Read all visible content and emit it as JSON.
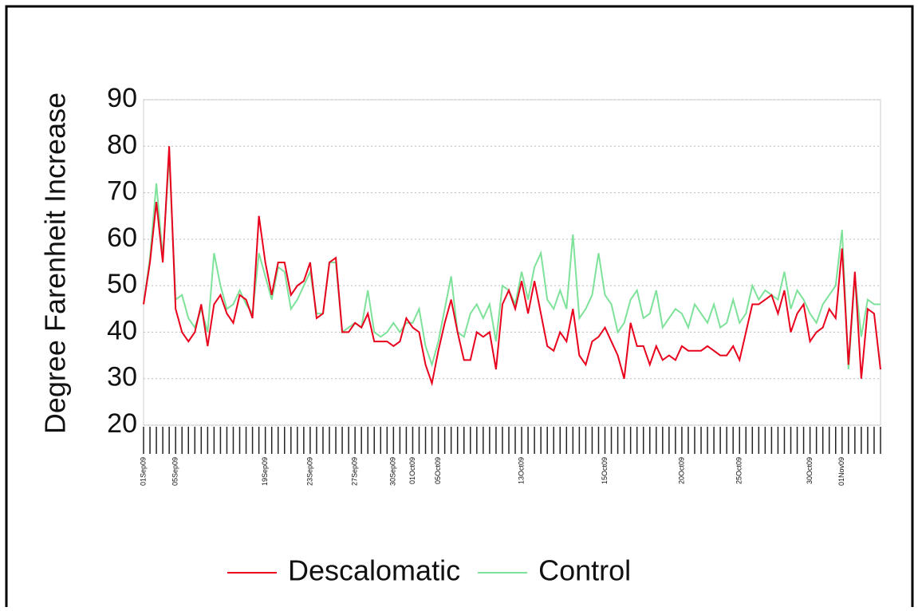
{
  "chart_data": {
    "type": "line",
    "y_label": "Degree Farenheit Increase",
    "categories": [
      "01Sep09",
      null,
      null,
      null,
      null,
      "05Sep09",
      null,
      null,
      null,
      null,
      null,
      null,
      null,
      null,
      null,
      null,
      null,
      null,
      null,
      "19Sep09",
      null,
      null,
      null,
      null,
      null,
      null,
      "23Sep09",
      null,
      null,
      null,
      null,
      null,
      null,
      "27Sep09",
      null,
      null,
      null,
      null,
      null,
      "30Sep09",
      null,
      null,
      "01Oct09",
      null,
      null,
      null,
      "05Oct09",
      null,
      null,
      null,
      null,
      null,
      null,
      null,
      null,
      null,
      null,
      null,
      null,
      "13Oct09",
      null,
      null,
      null,
      null,
      null,
      null,
      null,
      null,
      null,
      null,
      null,
      null,
      "15Oct09",
      null,
      null,
      null,
      null,
      null,
      null,
      null,
      null,
      null,
      null,
      null,
      "20Oct09",
      null,
      null,
      null,
      null,
      null,
      null,
      null,
      null,
      "25Oct09",
      null,
      null,
      null,
      null,
      null,
      null,
      null,
      null,
      null,
      null,
      "30Oct09",
      null,
      null,
      null,
      null,
      "01Nov09",
      null,
      null,
      null,
      null,
      null,
      null
    ],
    "series": [
      {
        "name": "Descalomatic",
        "color": "#e8001c",
        "values": [
          46,
          55,
          68,
          55,
          80,
          45,
          40,
          38,
          40,
          46,
          37,
          46,
          48,
          44,
          42,
          48,
          47,
          43,
          65,
          55,
          48,
          55,
          55,
          48,
          50,
          51,
          55,
          43,
          44,
          55,
          56,
          40,
          40,
          42,
          41,
          44,
          38,
          38,
          38,
          37,
          38,
          43,
          41,
          40,
          33,
          29,
          36,
          42,
          47,
          40,
          34,
          34,
          40,
          39,
          40,
          32,
          46,
          49,
          45,
          51,
          44,
          51,
          44,
          37,
          36,
          40,
          38,
          45,
          35,
          33,
          38,
          39,
          41,
          38,
          35,
          30,
          42,
          37,
          37,
          33,
          37,
          34,
          35,
          34,
          37,
          36,
          36,
          36,
          37,
          36,
          35,
          35,
          37,
          34,
          40,
          46,
          46,
          47,
          48,
          44,
          49,
          40,
          44,
          46,
          38,
          40,
          41,
          45,
          43,
          58,
          33,
          53,
          30,
          45,
          44,
          32
        ]
      },
      {
        "name": "Control",
        "color": "#7ee29a",
        "values": [
          46,
          56,
          72,
          56,
          78,
          47,
          48,
          43,
          41,
          45,
          40,
          57,
          50,
          45,
          46,
          49,
          46,
          44,
          57,
          52,
          47,
          54,
          53,
          45,
          47,
          50,
          53,
          44,
          44,
          55,
          55,
          40,
          41,
          42,
          41,
          49,
          40,
          39,
          40,
          42,
          40,
          42,
          42,
          45,
          37,
          33,
          38,
          45,
          52,
          40,
          39,
          44,
          46,
          43,
          46,
          38,
          50,
          49,
          46,
          53,
          47,
          54,
          57,
          47,
          45,
          49,
          45,
          61,
          43,
          45,
          48,
          57,
          48,
          46,
          40,
          42,
          47,
          49,
          43,
          44,
          49,
          41,
          43,
          45,
          44,
          41,
          46,
          44,
          42,
          46,
          41,
          42,
          47,
          42,
          44,
          50,
          47,
          49,
          48,
          47,
          53,
          45,
          49,
          47,
          44,
          42,
          46,
          48,
          50,
          62,
          32,
          52,
          39,
          47,
          46,
          46
        ]
      }
    ],
    "ylim": [
      20,
      90
    ],
    "yticks": [
      20,
      30,
      40,
      50,
      60,
      70,
      80,
      90
    ],
    "grid": true
  }
}
